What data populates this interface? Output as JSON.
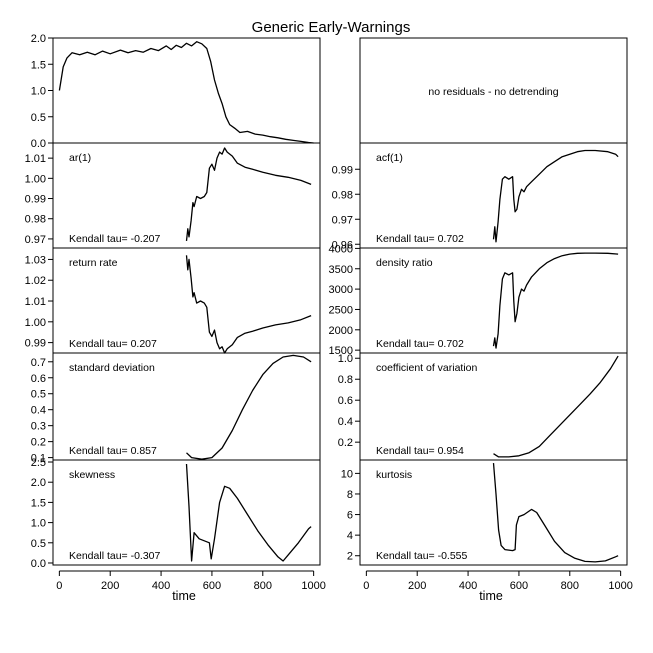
{
  "title": "Generic Early-Warnings",
  "xlabel": "time",
  "x_ticks": [
    "0",
    "200",
    "400",
    "600",
    "800",
    "1000"
  ],
  "no_residuals_note": "no residuals - no detrending",
  "chart_data": [
    {
      "id": "series",
      "column": "left",
      "row": 0,
      "type": "line",
      "label": "",
      "ylim": [
        0,
        2.0
      ],
      "y_ticks": [
        "0.0",
        "0.5",
        "1.0",
        "1.5",
        "2.0"
      ],
      "points": [
        [
          0,
          1.0
        ],
        [
          15,
          1.45
        ],
        [
          30,
          1.62
        ],
        [
          50,
          1.72
        ],
        [
          80,
          1.68
        ],
        [
          110,
          1.73
        ],
        [
          140,
          1.68
        ],
        [
          170,
          1.75
        ],
        [
          200,
          1.7
        ],
        [
          240,
          1.77
        ],
        [
          270,
          1.72
        ],
        [
          300,
          1.76
        ],
        [
          330,
          1.73
        ],
        [
          360,
          1.8
        ],
        [
          390,
          1.76
        ],
        [
          420,
          1.85
        ],
        [
          440,
          1.78
        ],
        [
          460,
          1.86
        ],
        [
          480,
          1.82
        ],
        [
          500,
          1.9
        ],
        [
          520,
          1.85
        ],
        [
          540,
          1.93
        ],
        [
          560,
          1.89
        ],
        [
          580,
          1.8
        ],
        [
          595,
          1.55
        ],
        [
          610,
          1.2
        ],
        [
          625,
          0.95
        ],
        [
          640,
          0.75
        ],
        [
          655,
          0.5
        ],
        [
          670,
          0.35
        ],
        [
          690,
          0.28
        ],
        [
          710,
          0.2
        ],
        [
          740,
          0.22
        ],
        [
          770,
          0.17
        ],
        [
          800,
          0.15
        ],
        [
          830,
          0.12
        ],
        [
          860,
          0.1
        ],
        [
          890,
          0.07
        ],
        [
          920,
          0.05
        ],
        [
          950,
          0.03
        ],
        [
          980,
          0.01
        ],
        [
          1000,
          0.0
        ]
      ]
    },
    {
      "id": "ar1",
      "column": "left",
      "row": 1,
      "type": "line",
      "label": "ar(1)",
      "kendall": "Kendall tau= -0.207",
      "ylim": [
        0.9655,
        1.0175
      ],
      "y_ticks": [
        "0.97",
        "0.98",
        "0.99",
        "1.00",
        "1.01"
      ],
      "points": [
        [
          500,
          0.969
        ],
        [
          505,
          0.975
        ],
        [
          510,
          0.971
        ],
        [
          518,
          0.979
        ],
        [
          525,
          0.988
        ],
        [
          530,
          0.986
        ],
        [
          540,
          0.991
        ],
        [
          555,
          0.99
        ],
        [
          570,
          0.991
        ],
        [
          580,
          0.993
        ],
        [
          590,
          1.005
        ],
        [
          600,
          1.007
        ],
        [
          610,
          1.004
        ],
        [
          620,
          1.01
        ],
        [
          630,
          1.013
        ],
        [
          640,
          1.012
        ],
        [
          650,
          1.015
        ],
        [
          660,
          1.013
        ],
        [
          680,
          1.011
        ],
        [
          700,
          1.0075
        ],
        [
          730,
          1.0055
        ],
        [
          760,
          1.0045
        ],
        [
          800,
          1.003
        ],
        [
          850,
          1.0015
        ],
        [
          900,
          1.0005
        ],
        [
          950,
          0.999
        ],
        [
          990,
          0.997
        ]
      ]
    },
    {
      "id": "return_rate",
      "column": "left",
      "row": 2,
      "type": "line",
      "label": "return rate",
      "kendall": "Kendall tau= 0.207",
      "ylim": [
        0.985,
        1.0355
      ],
      "y_ticks": [
        "0.99",
        "1.00",
        "1.01",
        "1.02",
        "1.03"
      ],
      "points": [
        [
          500,
          1.032
        ],
        [
          505,
          1.025
        ],
        [
          510,
          1.03
        ],
        [
          518,
          1.021
        ],
        [
          525,
          1.012
        ],
        [
          530,
          1.014
        ],
        [
          540,
          1.009
        ],
        [
          555,
          1.01
        ],
        [
          570,
          1.009
        ],
        [
          580,
          1.007
        ],
        [
          590,
          0.995
        ],
        [
          600,
          0.993
        ],
        [
          610,
          0.996
        ],
        [
          620,
          0.99
        ],
        [
          630,
          0.987
        ],
        [
          640,
          0.988
        ],
        [
          650,
          0.985
        ],
        [
          660,
          0.987
        ],
        [
          680,
          0.989
        ],
        [
          700,
          0.9925
        ],
        [
          730,
          0.9945
        ],
        [
          760,
          0.9955
        ],
        [
          800,
          0.997
        ],
        [
          850,
          0.9985
        ],
        [
          900,
          0.9995
        ],
        [
          950,
          1.001
        ],
        [
          990,
          1.003
        ]
      ]
    },
    {
      "id": "sd",
      "column": "left",
      "row": 3,
      "type": "line",
      "label": "standard deviation",
      "kendall": "Kendall tau= 0.857",
      "ylim": [
        0.085,
        0.755
      ],
      "y_ticks": [
        "0.1",
        "0.2",
        "0.3",
        "0.4",
        "0.5",
        "0.6",
        "0.7"
      ],
      "points": [
        [
          500,
          0.13
        ],
        [
          520,
          0.1
        ],
        [
          560,
          0.09
        ],
        [
          600,
          0.1
        ],
        [
          640,
          0.16
        ],
        [
          680,
          0.27
        ],
        [
          720,
          0.4
        ],
        [
          760,
          0.52
        ],
        [
          800,
          0.62
        ],
        [
          840,
          0.69
        ],
        [
          880,
          0.73
        ],
        [
          920,
          0.74
        ],
        [
          960,
          0.73
        ],
        [
          990,
          0.7
        ]
      ]
    },
    {
      "id": "skewness",
      "column": "left",
      "row": 4,
      "type": "line",
      "label": "skewness",
      "kendall": "Kendall tau= -0.307",
      "ylim": [
        -0.05,
        2.55
      ],
      "y_ticks": [
        "0.0",
        "0.5",
        "1.0",
        "1.5",
        "2.0",
        "2.5"
      ],
      "points": [
        [
          500,
          2.45
        ],
        [
          510,
          1.4
        ],
        [
          520,
          0.05
        ],
        [
          530,
          0.75
        ],
        [
          550,
          0.6
        ],
        [
          570,
          0.55
        ],
        [
          590,
          0.5
        ],
        [
          597,
          0.1
        ],
        [
          610,
          0.6
        ],
        [
          630,
          1.5
        ],
        [
          650,
          1.9
        ],
        [
          670,
          1.85
        ],
        [
          700,
          1.6
        ],
        [
          740,
          1.2
        ],
        [
          780,
          0.8
        ],
        [
          820,
          0.45
        ],
        [
          860,
          0.15
        ],
        [
          880,
          0.05
        ],
        [
          900,
          0.2
        ],
        [
          940,
          0.5
        ],
        [
          980,
          0.85
        ],
        [
          990,
          0.9
        ]
      ]
    },
    {
      "id": "acf1",
      "column": "right",
      "row": 1,
      "type": "line",
      "label": "acf(1)",
      "kendall": "Kendall tau= 0.702",
      "ylim": [
        0.9585,
        1.0005
      ],
      "y_ticks": [
        "0.96",
        "0.97",
        "0.98",
        "0.99"
      ],
      "points": [
        [
          500,
          0.962
        ],
        [
          505,
          0.967
        ],
        [
          510,
          0.961
        ],
        [
          518,
          0.969
        ],
        [
          525,
          0.978
        ],
        [
          535,
          0.986
        ],
        [
          545,
          0.987
        ],
        [
          560,
          0.986
        ],
        [
          575,
          0.987
        ],
        [
          580,
          0.978
        ],
        [
          585,
          0.973
        ],
        [
          592,
          0.974
        ],
        [
          600,
          0.979
        ],
        [
          610,
          0.982
        ],
        [
          620,
          0.981
        ],
        [
          630,
          0.983
        ],
        [
          650,
          0.985
        ],
        [
          680,
          0.988
        ],
        [
          710,
          0.991
        ],
        [
          740,
          0.993
        ],
        [
          770,
          0.995
        ],
        [
          800,
          0.996
        ],
        [
          830,
          0.997
        ],
        [
          860,
          0.9975
        ],
        [
          900,
          0.9975
        ],
        [
          950,
          0.997
        ],
        [
          980,
          0.996
        ],
        [
          990,
          0.995
        ]
      ]
    },
    {
      "id": "density_ratio",
      "column": "right",
      "row": 2,
      "type": "line",
      "label": "density ratio",
      "kendall": "Kendall tau= 0.702",
      "ylim": [
        1430,
        4010
      ],
      "y_ticks": [
        "1500",
        "2000",
        "2500",
        "3000",
        "3500",
        "4000"
      ],
      "points": [
        [
          500,
          1600
        ],
        [
          505,
          1800
        ],
        [
          510,
          1550
        ],
        [
          518,
          1900
        ],
        [
          525,
          2600
        ],
        [
          535,
          3250
        ],
        [
          545,
          3400
        ],
        [
          560,
          3350
        ],
        [
          575,
          3400
        ],
        [
          580,
          2700
        ],
        [
          585,
          2200
        ],
        [
          592,
          2400
        ],
        [
          600,
          2800
        ],
        [
          610,
          3000
        ],
        [
          620,
          2950
        ],
        [
          630,
          3100
        ],
        [
          650,
          3300
        ],
        [
          680,
          3500
        ],
        [
          710,
          3650
        ],
        [
          740,
          3750
        ],
        [
          770,
          3820
        ],
        [
          800,
          3860
        ],
        [
          830,
          3880
        ],
        [
          860,
          3885
        ],
        [
          900,
          3885
        ],
        [
          950,
          3880
        ],
        [
          990,
          3860
        ]
      ]
    },
    {
      "id": "cv",
      "column": "right",
      "row": 3,
      "type": "line",
      "label": "coefficient of variation",
      "kendall": "Kendall tau= 0.954",
      "ylim": [
        0.03,
        1.05
      ],
      "y_ticks": [
        "0.2",
        "0.4",
        "0.6",
        "0.8",
        "1.0"
      ],
      "points": [
        [
          500,
          0.09
        ],
        [
          520,
          0.06
        ],
        [
          560,
          0.06
        ],
        [
          600,
          0.07
        ],
        [
          640,
          0.1
        ],
        [
          680,
          0.16
        ],
        [
          720,
          0.26
        ],
        [
          760,
          0.36
        ],
        [
          800,
          0.46
        ],
        [
          840,
          0.56
        ],
        [
          880,
          0.66
        ],
        [
          920,
          0.77
        ],
        [
          960,
          0.9
        ],
        [
          990,
          1.02
        ]
      ]
    },
    {
      "id": "kurtosis",
      "column": "right",
      "row": 4,
      "type": "line",
      "label": "kurtosis",
      "kendall": "Kendall tau= -0.555",
      "ylim": [
        1.1,
        11.3
      ],
      "y_ticks": [
        "2",
        "4",
        "6",
        "8",
        "10"
      ],
      "points": [
        [
          500,
          11.0
        ],
        [
          510,
          8.0
        ],
        [
          520,
          4.5
        ],
        [
          530,
          3.0
        ],
        [
          545,
          2.6
        ],
        [
          560,
          2.55
        ],
        [
          575,
          2.5
        ],
        [
          585,
          2.6
        ],
        [
          590,
          5.0
        ],
        [
          600,
          5.8
        ],
        [
          620,
          6.0
        ],
        [
          650,
          6.5
        ],
        [
          670,
          6.2
        ],
        [
          700,
          5.0
        ],
        [
          740,
          3.4
        ],
        [
          780,
          2.3
        ],
        [
          820,
          1.75
        ],
        [
          860,
          1.45
        ],
        [
          900,
          1.4
        ],
        [
          940,
          1.5
        ],
        [
          980,
          1.9
        ],
        [
          990,
          2.0
        ]
      ]
    }
  ]
}
